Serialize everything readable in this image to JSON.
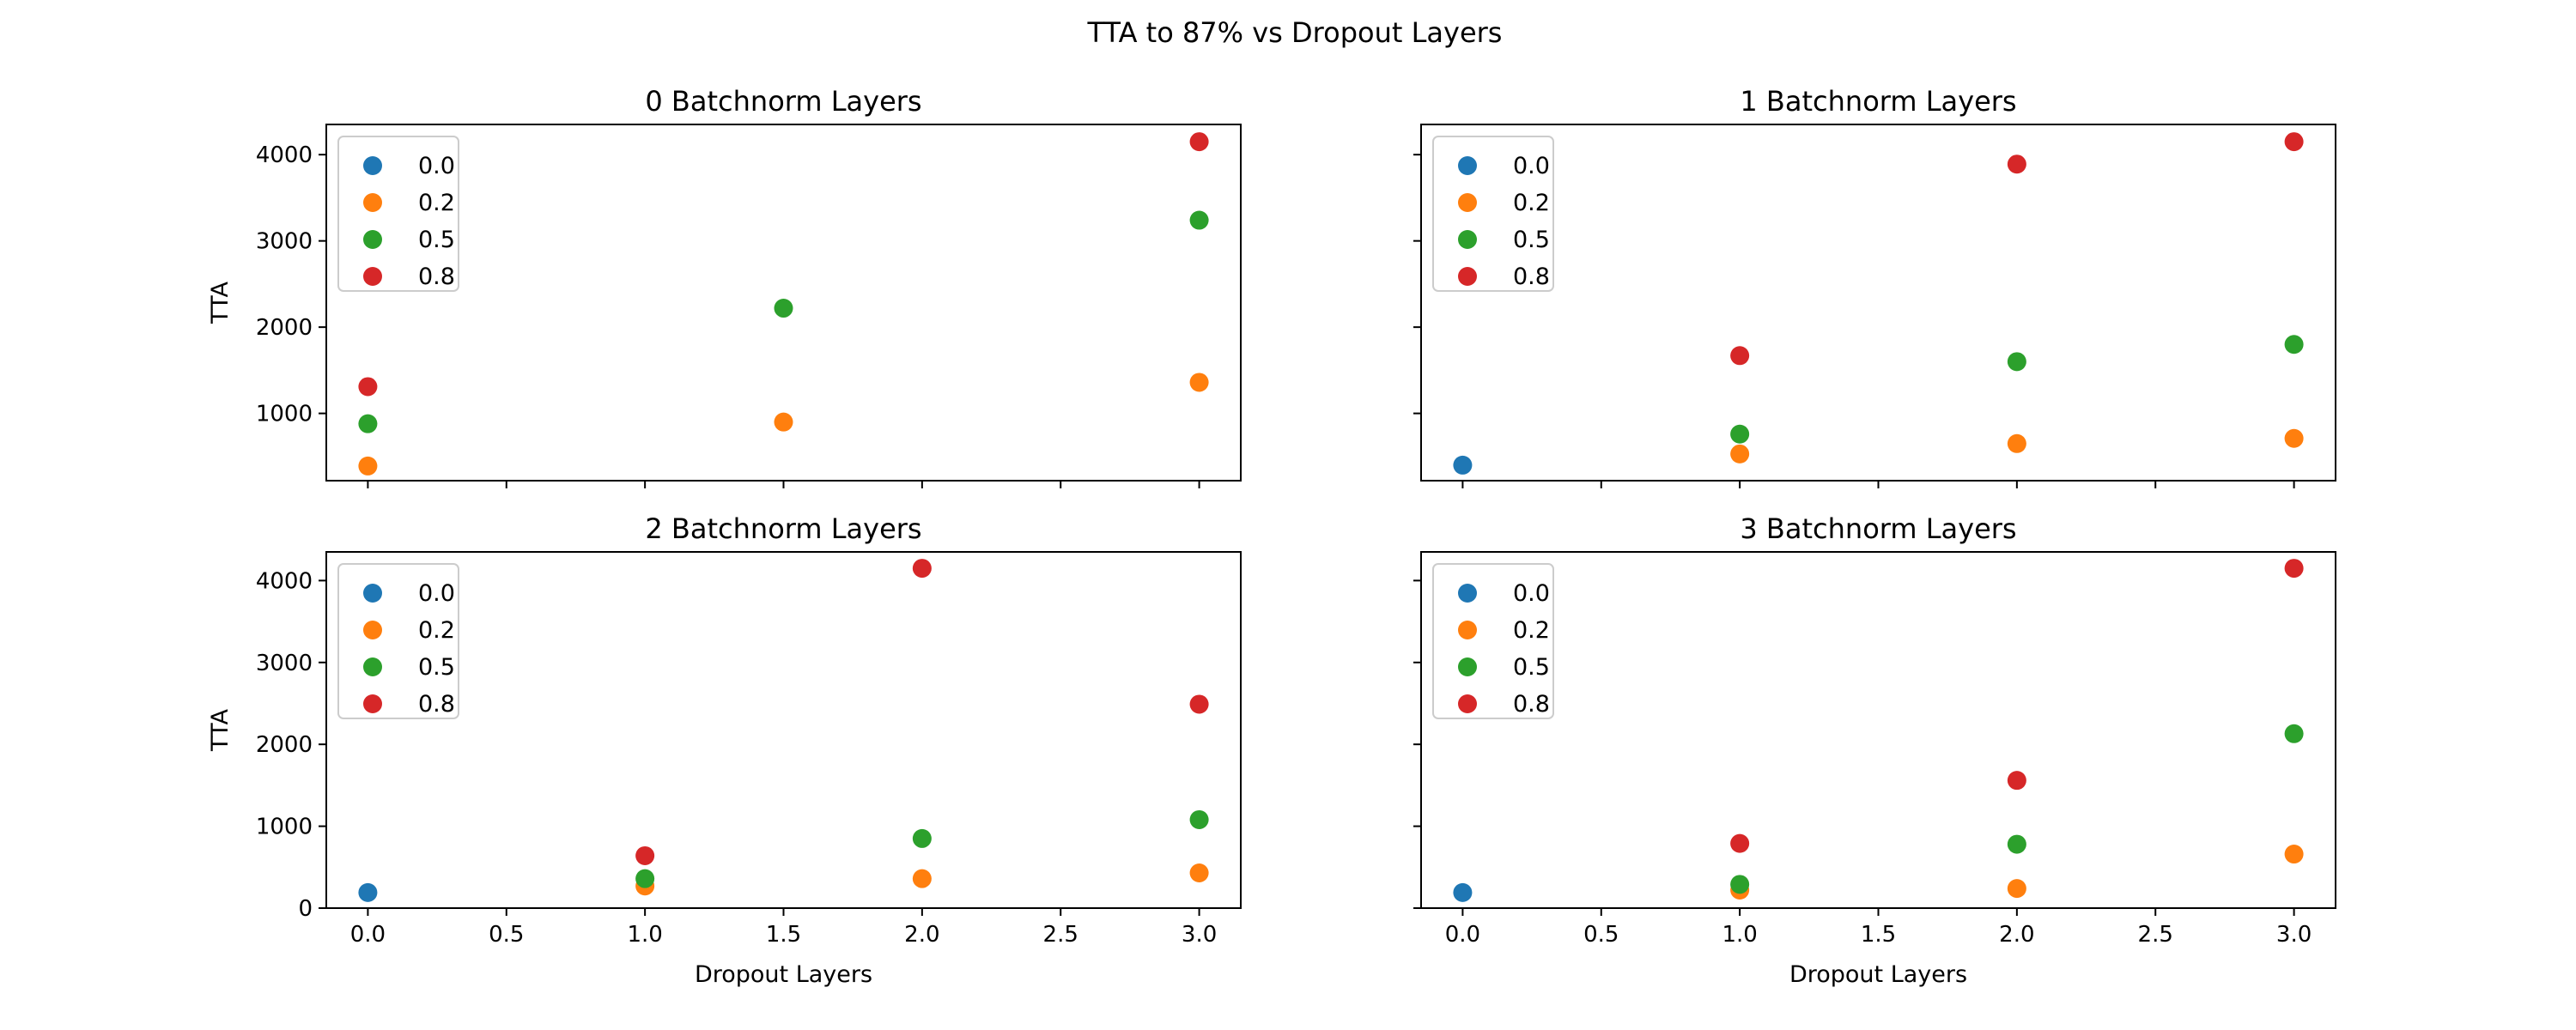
{
  "chart_data": {
    "type": "scatter",
    "title": "TTA to 87% vs Dropout Layers",
    "colors": {
      "0.0": "#1f77b4",
      "0.2": "#ff7f0e",
      "0.5": "#2ca02c",
      "0.8": "#d62728"
    },
    "legend_placement": "upper left",
    "grid": false,
    "xlim": [
      -0.15,
      3.15
    ],
    "xticks": [
      0.0,
      0.5,
      1.0,
      1.5,
      2.0,
      2.5,
      3.0
    ],
    "xtick_labels": [
      "0.0",
      "0.5",
      "1.0",
      "1.5",
      "2.0",
      "2.5",
      "3.0"
    ],
    "subplots": [
      {
        "title": "0 Batchnorm Layers",
        "xlabel": "",
        "ylabel": "TTA",
        "ylim": [
          220,
          4350
        ],
        "yticks": [
          1000,
          2000,
          3000,
          4000
        ],
        "ytick_labels": [
          "1000",
          "2000",
          "3000",
          "4000"
        ],
        "show_xtick_labels": false,
        "show_ytick_labels": true,
        "series": [
          {
            "name": "0.0",
            "points": []
          },
          {
            "name": "0.2",
            "points": [
              [
                0,
                390
              ],
              [
                1.5,
                900
              ],
              [
                3,
                1360
              ]
            ]
          },
          {
            "name": "0.5",
            "points": [
              [
                0,
                880
              ],
              [
                1.5,
                2220
              ],
              [
                3,
                3240
              ]
            ]
          },
          {
            "name": "0.8",
            "points": [
              [
                0,
                1310
              ],
              [
                3,
                4150
              ]
            ]
          }
        ]
      },
      {
        "title": "1 Batchnorm Layers",
        "xlabel": "",
        "ylabel": "",
        "ylim": [
          220,
          4350
        ],
        "yticks": [
          1000,
          2000,
          3000,
          4000
        ],
        "ytick_labels": [
          "1000",
          "2000",
          "3000",
          "4000"
        ],
        "show_xtick_labels": false,
        "show_ytick_labels": false,
        "series": [
          {
            "name": "0.0",
            "points": [
              [
                0,
                400
              ]
            ]
          },
          {
            "name": "0.2",
            "points": [
              [
                1,
                530
              ],
              [
                2,
                650
              ],
              [
                3,
                710
              ]
            ]
          },
          {
            "name": "0.5",
            "points": [
              [
                1,
                760
              ],
              [
                2,
                1600
              ],
              [
                3,
                1800
              ]
            ]
          },
          {
            "name": "0.8",
            "points": [
              [
                1,
                1670
              ],
              [
                2,
                3890
              ],
              [
                3,
                4150
              ]
            ]
          }
        ]
      },
      {
        "title": "2 Batchnorm Layers",
        "xlabel": "Dropout Layers",
        "ylabel": "TTA",
        "ylim": [
          0,
          4350
        ],
        "yticks": [
          0,
          1000,
          2000,
          3000,
          4000
        ],
        "ytick_labels": [
          "0",
          "1000",
          "2000",
          "3000",
          "4000"
        ],
        "show_xtick_labels": true,
        "show_ytick_labels": true,
        "series": [
          {
            "name": "0.0",
            "points": [
              [
                0,
                190
              ]
            ]
          },
          {
            "name": "0.2",
            "points": [
              [
                1,
                270
              ],
              [
                2,
                360
              ],
              [
                3,
                430
              ]
            ]
          },
          {
            "name": "0.5",
            "points": [
              [
                1,
                360
              ],
              [
                2,
                850
              ],
              [
                3,
                1080
              ]
            ]
          },
          {
            "name": "0.8",
            "points": [
              [
                1,
                640
              ],
              [
                2,
                4150
              ],
              [
                3,
                2490
              ]
            ]
          }
        ]
      },
      {
        "title": "3 Batchnorm Layers",
        "xlabel": "Dropout Layers",
        "ylabel": "",
        "ylim": [
          0,
          4350
        ],
        "yticks": [
          0,
          1000,
          2000,
          3000,
          4000
        ],
        "ytick_labels": [
          "0",
          "1000",
          "2000",
          "3000",
          "4000"
        ],
        "show_xtick_labels": true,
        "show_ytick_labels": false,
        "series": [
          {
            "name": "0.0",
            "points": [
              [
                0,
                190
              ]
            ]
          },
          {
            "name": "0.2",
            "points": [
              [
                1,
                220
              ],
              [
                2,
                240
              ],
              [
                3,
                660
              ]
            ]
          },
          {
            "name": "0.5",
            "points": [
              [
                1,
                290
              ],
              [
                2,
                780
              ],
              [
                3,
                2130
              ]
            ]
          },
          {
            "name": "0.8",
            "points": [
              [
                1,
                790
              ],
              [
                2,
                1560
              ],
              [
                3,
                4150
              ]
            ]
          }
        ]
      }
    ]
  }
}
